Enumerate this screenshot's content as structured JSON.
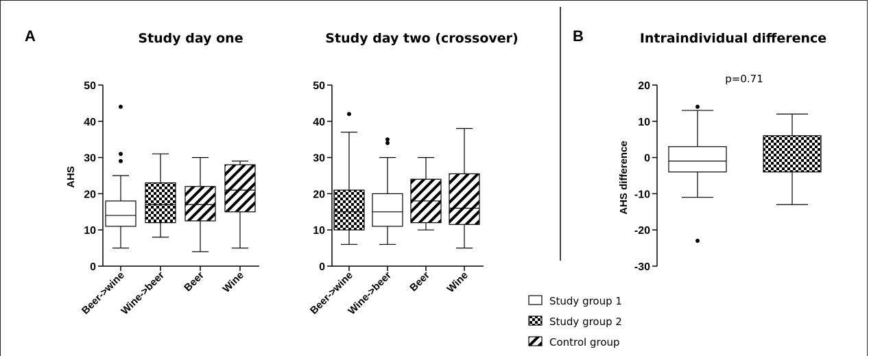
{
  "panels": {
    "a_letter": "A",
    "b_letter": "B"
  },
  "chart_data": [
    {
      "type": "box",
      "title": "Study day one",
      "ylabel": "AHS",
      "ylim": [
        0,
        50
      ],
      "yticks": [
        0,
        10,
        20,
        30,
        40,
        50
      ],
      "categories": [
        "Beer->wine",
        "Wine->beer",
        "Beer",
        "Wine"
      ],
      "groups": [
        "Study group 1",
        "Study group 2",
        "Control group",
        "Control group"
      ],
      "boxes": [
        {
          "min": 5,
          "q1": 11,
          "median": 14,
          "q3": 18,
          "max": 25,
          "outliers": [
            29,
            31,
            44
          ]
        },
        {
          "min": 8,
          "q1": 12,
          "median": 17,
          "q3": 23,
          "max": 31,
          "outliers": []
        },
        {
          "min": 4,
          "q1": 12.5,
          "median": 17,
          "q3": 22,
          "max": 30,
          "outliers": []
        },
        {
          "min": 5,
          "q1": 15,
          "median": 21,
          "q3": 28,
          "max": 29,
          "outliers": []
        }
      ]
    },
    {
      "type": "box",
      "title": "Study day two (crossover)",
      "ylabel": "",
      "ylim": [
        0,
        50
      ],
      "yticks": [
        0,
        10,
        20,
        30,
        40,
        50
      ],
      "categories": [
        "Beer->wine",
        "Wine->beer",
        "Beer",
        "Wine"
      ],
      "groups": [
        "Study group 2",
        "Study group 1",
        "Control group",
        "Control group"
      ],
      "boxes": [
        {
          "min": 6,
          "q1": 10,
          "median": 15,
          "q3": 21,
          "max": 37,
          "outliers": [
            42
          ]
        },
        {
          "min": 6,
          "q1": 11,
          "median": 15,
          "q3": 20,
          "max": 30,
          "outliers": [
            34,
            35
          ]
        },
        {
          "min": 10,
          "q1": 12,
          "median": 18,
          "q3": 24,
          "max": 30,
          "outliers": []
        },
        {
          "min": 5,
          "q1": 11.5,
          "median": 16,
          "q3": 25.5,
          "max": 38,
          "outliers": []
        }
      ]
    },
    {
      "type": "box",
      "title": "Intraindividual difference",
      "ylabel": "AHS difference",
      "ylim": [
        -30,
        20
      ],
      "yticks": [
        -30,
        -20,
        -10,
        0,
        10,
        20
      ],
      "categories": [
        "",
        ""
      ],
      "groups": [
        "Study group 1",
        "Study group 2"
      ],
      "annotation": "p=0.71",
      "boxes": [
        {
          "min": -11,
          "q1": -4,
          "median": -1,
          "q3": 3,
          "max": 13,
          "outliers": [
            14,
            -23
          ]
        },
        {
          "min": -13,
          "q1": -4,
          "median": 6,
          "q3": 6,
          "max": 12,
          "outliers": []
        }
      ]
    }
  ],
  "legend": [
    {
      "label": "Study group 1",
      "pattern": "none"
    },
    {
      "label": "Study group 2",
      "pattern": "checker"
    },
    {
      "label": "Control group",
      "pattern": "hatch"
    }
  ]
}
